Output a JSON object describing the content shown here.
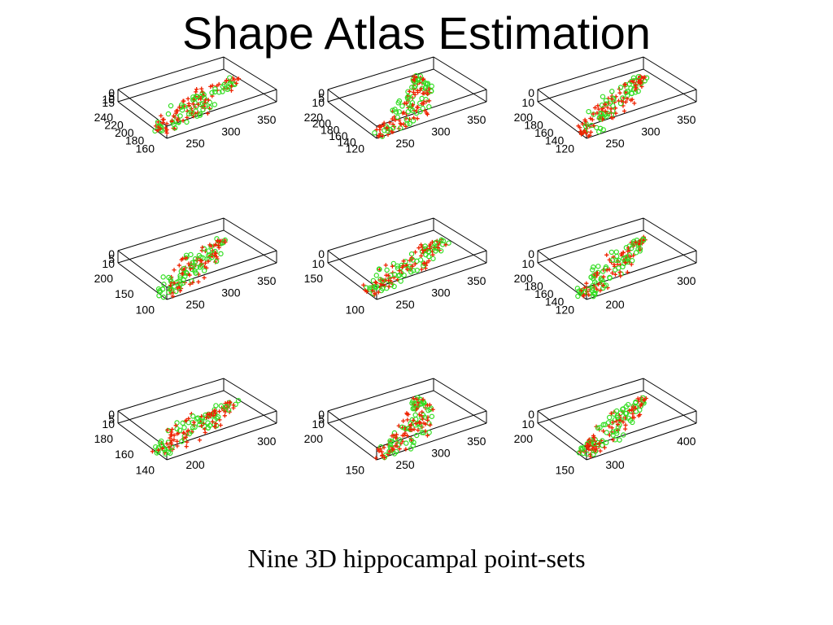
{
  "slide": {
    "title": "Shape Atlas Estimation",
    "caption": "Nine 3D hippocampal point-sets"
  },
  "colors": {
    "green": "#33dd22",
    "red": "#ee2200",
    "box": "#000000"
  },
  "plots": [
    {
      "name": "plot-1",
      "z_ticks": [
        "15",
        "10",
        "5",
        "0"
      ],
      "y_ticks": [
        "240",
        "220",
        "200",
        "180",
        "160"
      ],
      "x_ticks": [
        "250",
        "300",
        "350"
      ],
      "shape": "flat"
    },
    {
      "name": "plot-2",
      "z_ticks": [
        "10",
        "5",
        "0"
      ],
      "y_ticks": [
        "220",
        "200",
        "180",
        "160",
        "140",
        "120"
      ],
      "x_ticks": [
        "250",
        "300",
        "350"
      ],
      "shape": "curl"
    },
    {
      "name": "plot-3",
      "z_ticks": [
        "10",
        "0"
      ],
      "y_ticks": [
        "200",
        "180",
        "160",
        "140",
        "120"
      ],
      "x_ticks": [
        "250",
        "300",
        "350"
      ],
      "shape": "diag"
    },
    {
      "name": "plot-4",
      "z_ticks": [
        "10",
        "5",
        "0"
      ],
      "y_ticks": [
        "200",
        "150",
        "100"
      ],
      "x_ticks": [
        "250",
        "300",
        "350"
      ],
      "shape": "diag"
    },
    {
      "name": "plot-5",
      "z_ticks": [
        "10",
        "0"
      ],
      "y_ticks": [
        "150",
        "100"
      ],
      "x_ticks": [
        "250",
        "300",
        "350"
      ],
      "shape": "flat"
    },
    {
      "name": "plot-6",
      "z_ticks": [
        "10",
        "0"
      ],
      "y_ticks": [
        "200",
        "180",
        "160",
        "140",
        "120"
      ],
      "x_ticks": [
        "200",
        "300"
      ],
      "shape": "diag"
    },
    {
      "name": "plot-7",
      "z_ticks": [
        "10",
        "5",
        "0"
      ],
      "y_ticks": [
        "180",
        "160",
        "140"
      ],
      "x_ticks": [
        "200",
        "300"
      ],
      "shape": "flat"
    },
    {
      "name": "plot-8",
      "z_ticks": [
        "10",
        "5",
        "0"
      ],
      "y_ticks": [
        "200",
        "150"
      ],
      "x_ticks": [
        "250",
        "300",
        "350"
      ],
      "shape": "curl"
    },
    {
      "name": "plot-9",
      "z_ticks": [
        "10",
        "0"
      ],
      "y_ticks": [
        "200",
        "150"
      ],
      "x_ticks": [
        "300",
        "400"
      ],
      "shape": "diag"
    }
  ]
}
